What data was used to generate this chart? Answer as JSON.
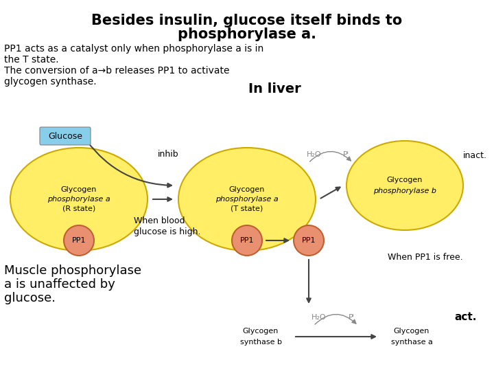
{
  "title_line1": "Besides insulin, glucose itself binds to",
  "title_line2": "phosphorylase a.",
  "text_line1": "PP1 acts as a catalyst only when phosphorylase a is in",
  "text_line2": "the T state.",
  "text_line3": "The conversion of a→b releases PP1 to activate",
  "text_line4": "glycogen synthase.",
  "in_liver_label": "In liver",
  "glucose_label": "Glucose",
  "glucose_bg": "#87CEEB",
  "inhib_label": "inhib",
  "inact_label": "inact.",
  "act_label": "act.",
  "when_blood_glucose": "When blood\nglucose is high.",
  "when_pp1_free": "When PP1 is free.",
  "muscle_text_line1": "Muscle phosphorylase",
  "muscle_text_line2": "a is unaffected by",
  "muscle_text_line3": "glucose.",
  "circle1_label_line1": "Glycogen",
  "circle1_label_line2": "phosphorylase a",
  "circle1_label_line3": "(R state)",
  "circle2_label_line1": "Glycogen",
  "circle2_label_line2": "phosphorylase a",
  "circle2_label_line3": "(T state)",
  "circle3_label_line1": "Glycogen",
  "circle3_label_line2": "phosphorylase b",
  "pp1_label": "PP1",
  "gs_b_label_line1": "Glycogen",
  "gs_b_label_line2": "synthase b",
  "gs_a_label_line1": "Glycogen",
  "gs_a_label_line2": "synthase a",
  "h2o_label": "H₂O",
  "pi_label": "Pᴵ",
  "large_circle_color": "#FFEE66",
  "large_circle_edge": "#CCAA00",
  "small_circle_color": "#E89070",
  "small_circle_edge": "#C06030",
  "background": "#FFFFFF",
  "text_color": "#000000",
  "gray_text": "#888888",
  "arrow_color": "#444444"
}
